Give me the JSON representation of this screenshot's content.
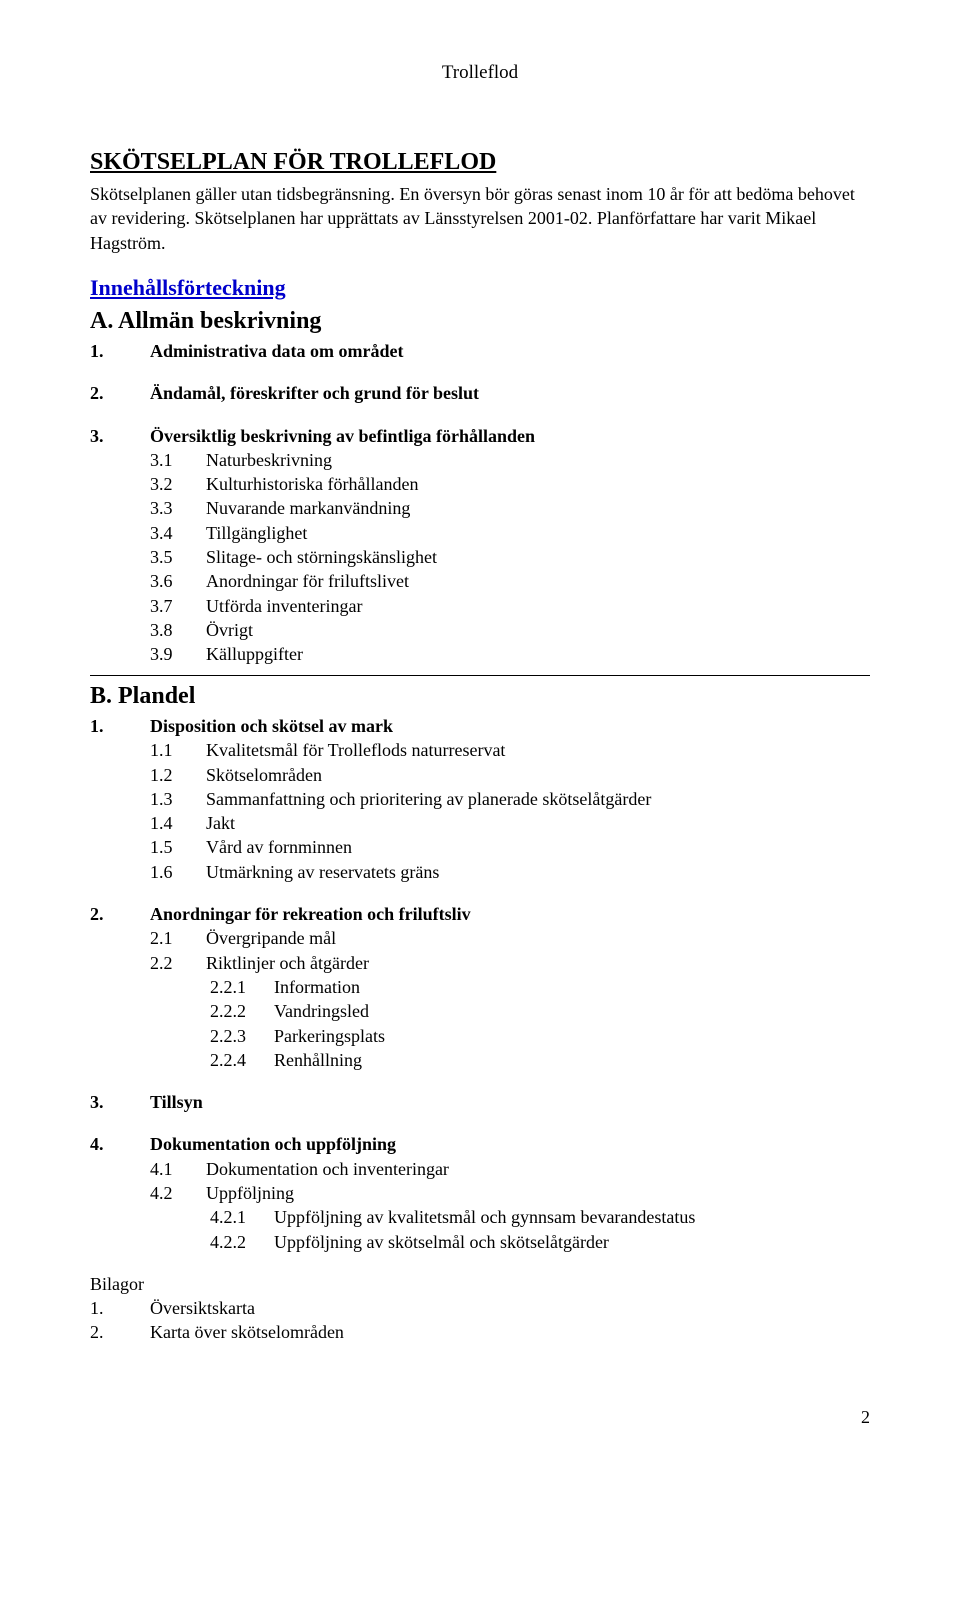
{
  "header": "Trolleflod",
  "title": "SKÖTSELPLAN FÖR TROLLEFLOD",
  "intro": "Skötselplanen gäller utan tidsbegränsning. En översyn bör göras senast inom 10 år för att bedöma behovet av revidering. Skötselplanen har upprättats av Länsstyrelsen 2001-02. Planförfattare har varit Mikael Hagström.",
  "toc_heading": "Innehållsförteckning",
  "secA": {
    "letter": "A.",
    "title": "Allmän beskrivning",
    "items": {
      "i1": {
        "n": "1.",
        "t": "Administrativa data om området"
      },
      "i2": {
        "n": "2.",
        "t": "Ändamål, föreskrifter och grund för beslut"
      },
      "i3": {
        "n": "3.",
        "t": "Översiktlig beskrivning av befintliga förhållanden",
        "sub": {
          "s1": {
            "n": "3.1",
            "t": "Naturbeskrivning"
          },
          "s2": {
            "n": "3.2",
            "t": "Kulturhistoriska förhållanden"
          },
          "s3": {
            "n": "3.3",
            "t": "Nuvarande markanvändning"
          },
          "s4": {
            "n": "3.4",
            "t": "Tillgänglighet"
          },
          "s5": {
            "n": "3.5",
            "t": "Slitage- och störningskänslighet"
          },
          "s6": {
            "n": "3.6",
            "t": "Anordningar för friluftslivet"
          },
          "s7": {
            "n": "3.7",
            "t": "Utförda inventeringar"
          },
          "s8": {
            "n": "3.8",
            "t": "Övrigt"
          },
          "s9": {
            "n": "3.9",
            "t": "Källuppgifter"
          }
        }
      }
    }
  },
  "secB": {
    "letter": "B.",
    "title": "Plandel",
    "items": {
      "i1": {
        "n": "1.",
        "t": "Disposition och skötsel av mark",
        "sub": {
          "s1": {
            "n": "1.1",
            "t": "Kvalitetsmål för Trolleflods naturreservat"
          },
          "s2": {
            "n": "1.2",
            "t": "Skötselområden"
          },
          "s3": {
            "n": "1.3",
            "t": "Sammanfattning och prioritering av planerade skötselåtgärder"
          },
          "s4": {
            "n": "1.4",
            "t": "Jakt"
          },
          "s5": {
            "n": "1.5",
            "t": "Vård av fornminnen"
          },
          "s6": {
            "n": "1.6",
            "t": "Utmärkning av reservatets gräns"
          }
        }
      },
      "i2": {
        "n": "2.",
        "t": "Anordningar för rekreation och friluftsliv",
        "sub": {
          "s1": {
            "n": "2.1",
            "t": "Övergripande mål"
          },
          "s2": {
            "n": "2.2",
            "t": "Riktlinjer och åtgärder",
            "sub": {
              "ss1": {
                "n": "2.2.1",
                "t": "Information"
              },
              "ss2": {
                "n": "2.2.2",
                "t": "Vandringsled"
              },
              "ss3": {
                "n": "2.2.3",
                "t": "Parkeringsplats"
              },
              "ss4": {
                "n": "2.2.4",
                "t": "Renhållning"
              }
            }
          }
        }
      },
      "i3": {
        "n": "3.",
        "t": "Tillsyn"
      },
      "i4": {
        "n": "4.",
        "t": "Dokumentation och uppföljning",
        "sub": {
          "s1": {
            "n": "4.1",
            "t": "Dokumentation och inventeringar"
          },
          "s2": {
            "n": "4.2",
            "t": "Uppföljning",
            "sub": {
              "ss1": {
                "n": "4.2.1",
                "t": "Uppföljning av kvalitetsmål och gynnsam bevarandestatus"
              },
              "ss2": {
                "n": "4.2.2",
                "t": "Uppföljning av skötselmål och skötselåtgärder"
              }
            }
          }
        }
      }
    }
  },
  "bilagor": {
    "title": "Bilagor",
    "b1": {
      "n": "1.",
      "t": "Översiktskarta"
    },
    "b2": {
      "n": "2.",
      "t": "Karta över skötselområden"
    }
  },
  "page_num": "2"
}
